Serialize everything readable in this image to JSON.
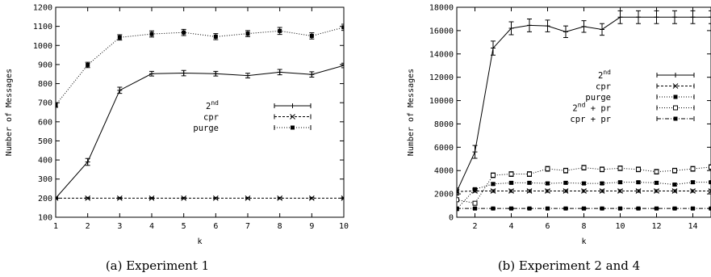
{
  "chart_data": [
    {
      "type": "line",
      "title": "",
      "caption": "(a) Experiment 1",
      "xlabel": "k",
      "ylabel": "Number of Messages",
      "xlim": [
        1,
        10
      ],
      "ylim": [
        100,
        1200
      ],
      "x_ticks": [
        "1",
        "2",
        "3",
        "4",
        "5",
        "6",
        "7",
        "8",
        "9",
        "10"
      ],
      "y_ticks": [
        "100",
        "200",
        "300",
        "400",
        "500",
        "600",
        "700",
        "800",
        "900",
        "1000",
        "1100",
        "1200"
      ],
      "grid": false,
      "legend_position": "right",
      "x": [
        1,
        2,
        3,
        4,
        5,
        6,
        7,
        8,
        9,
        10
      ],
      "series": [
        {
          "name": "2nd",
          "legend_base": "2",
          "legend_sup": "nd",
          "style": "solid",
          "marker": "plus",
          "values": [
            200,
            390,
            765,
            852,
            855,
            852,
            842,
            860,
            848,
            895
          ],
          "errors": [
            5,
            18,
            16,
            12,
            14,
            12,
            12,
            14,
            14,
            12
          ]
        },
        {
          "name": "cpr",
          "legend_base": "cpr",
          "legend_sup": "",
          "style": "dashed",
          "marker": "x",
          "values": [
            200,
            200,
            200,
            200,
            200,
            200,
            200,
            200,
            200,
            200
          ],
          "errors": [
            4,
            4,
            4,
            4,
            4,
            4,
            4,
            4,
            4,
            4
          ]
        },
        {
          "name": "purge",
          "legend_base": "purge",
          "legend_sup": "",
          "style": "dotted",
          "marker": "square",
          "values": [
            688,
            898,
            1042,
            1060,
            1068,
            1046,
            1062,
            1076,
            1050,
            1095
          ],
          "errors": [
            12,
            14,
            14,
            16,
            16,
            16,
            16,
            18,
            16,
            16
          ]
        }
      ]
    },
    {
      "type": "line",
      "title": "",
      "caption": "(b) Experiment 2 and 4",
      "xlabel": "k",
      "ylabel": "Number of Messages",
      "xlim": [
        1,
        15
      ],
      "ylim": [
        0,
        18000
      ],
      "x_ticks": [
        "2",
        "4",
        "6",
        "8",
        "10",
        "12",
        "14"
      ],
      "y_ticks": [
        "0",
        "2000",
        "4000",
        "6000",
        "8000",
        "10000",
        "12000",
        "14000",
        "16000",
        "18000"
      ],
      "grid": false,
      "legend_position": "right",
      "x": [
        1,
        2,
        3,
        4,
        5,
        6,
        7,
        8,
        9,
        10,
        11,
        12,
        13,
        14,
        15
      ],
      "series": [
        {
          "name": "2nd",
          "legend_base": "2",
          "legend_sup": "nd",
          "style": "solid",
          "marker": "plus",
          "values": [
            2200,
            5600,
            14500,
            16200,
            16450,
            16400,
            15900,
            16350,
            16100,
            17150,
            17150,
            17150,
            17150,
            17150,
            17150
          ],
          "errors": [
            300,
            550,
            600,
            550,
            550,
            500,
            500,
            500,
            500,
            550,
            550,
            550,
            550,
            550,
            550
          ]
        },
        {
          "name": "cpr",
          "legend_base": "cpr",
          "legend_sup": "",
          "style": "dashed",
          "marker": "x",
          "values": [
            2200,
            2250,
            2250,
            2250,
            2250,
            2250,
            2250,
            2250,
            2250,
            2250,
            2250,
            2250,
            2250,
            2250,
            2250
          ],
          "errors": [
            100,
            100,
            100,
            100,
            100,
            100,
            100,
            100,
            100,
            100,
            100,
            100,
            100,
            100,
            100
          ]
        },
        {
          "name": "purge",
          "legend_base": "purge",
          "legend_sup": "",
          "style": "dotted",
          "marker": "square",
          "values": [
            700,
            2400,
            2850,
            2950,
            2950,
            2900,
            2950,
            2900,
            2900,
            3000,
            3000,
            2950,
            2800,
            3000,
            3000
          ],
          "errors": [
            100,
            100,
            100,
            100,
            100,
            100,
            100,
            100,
            100,
            100,
            100,
            100,
            100,
            100,
            100
          ]
        },
        {
          "name": "2nd + pr",
          "legend_base": "2",
          "legend_sup": "nd",
          "legend_tail": " + pr",
          "style": "dotted",
          "marker": "open-square",
          "values": [
            1500,
            1200,
            3600,
            3700,
            3700,
            4150,
            4000,
            4250,
            4100,
            4200,
            4100,
            3900,
            4000,
            4150,
            4300
          ],
          "errors": [
            150,
            150,
            200,
            200,
            200,
            200,
            200,
            200,
            200,
            200,
            200,
            200,
            200,
            200,
            200
          ]
        },
        {
          "name": "cpr + pr",
          "legend_base": "cpr + pr",
          "legend_sup": "",
          "style": "dashdot",
          "marker": "square",
          "values": [
            750,
            750,
            750,
            750,
            750,
            750,
            750,
            750,
            750,
            750,
            750,
            750,
            750,
            750,
            750
          ],
          "errors": [
            60,
            60,
            60,
            60,
            60,
            60,
            60,
            60,
            60,
            60,
            60,
            60,
            60,
            60,
            60
          ]
        }
      ]
    }
  ]
}
